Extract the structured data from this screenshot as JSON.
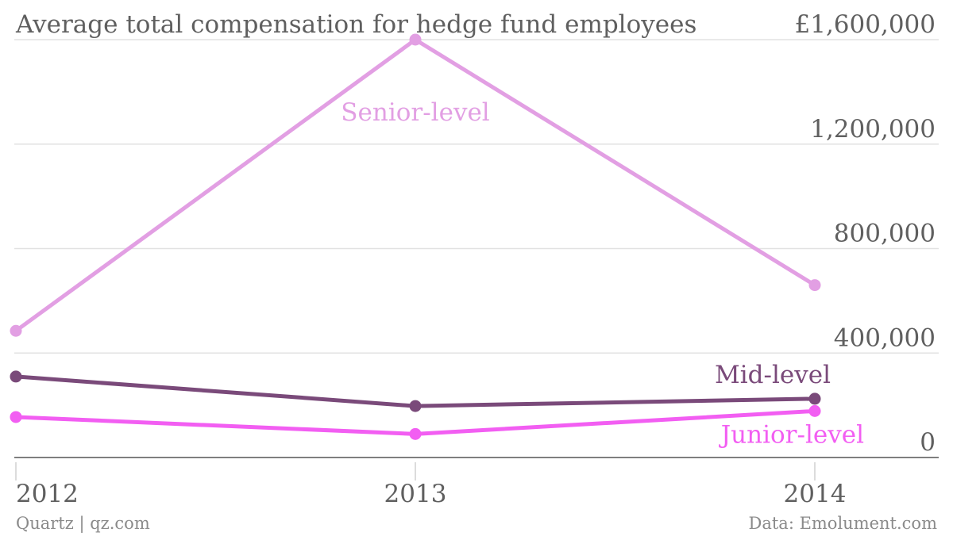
{
  "chart_data": {
    "type": "line",
    "title": "Average total compensation for hedge fund employees",
    "x": [
      "2012",
      "2013",
      "2014"
    ],
    "ylim": [
      0,
      1600000
    ],
    "ytick_labels": [
      "0",
      "400,000",
      "800,000",
      "1,200,000",
      "£1,600,000"
    ],
    "ytick_values": [
      0,
      400000,
      800000,
      1200000,
      1600000
    ],
    "grid": true,
    "series": [
      {
        "name": "Senior-level",
        "values": [
          485000,
          1600000,
          660000
        ],
        "color": "#e29fe3"
      },
      {
        "name": "Mid-level",
        "values": [
          310000,
          197000,
          225000
        ],
        "color": "#7a4a7a"
      },
      {
        "name": "Junior-level",
        "values": [
          155000,
          90000,
          178000
        ],
        "color": "#f25ef2"
      }
    ]
  },
  "footer": {
    "source_left": "Quartz | qz.com",
    "source_right": "Data: Emolument.com"
  }
}
